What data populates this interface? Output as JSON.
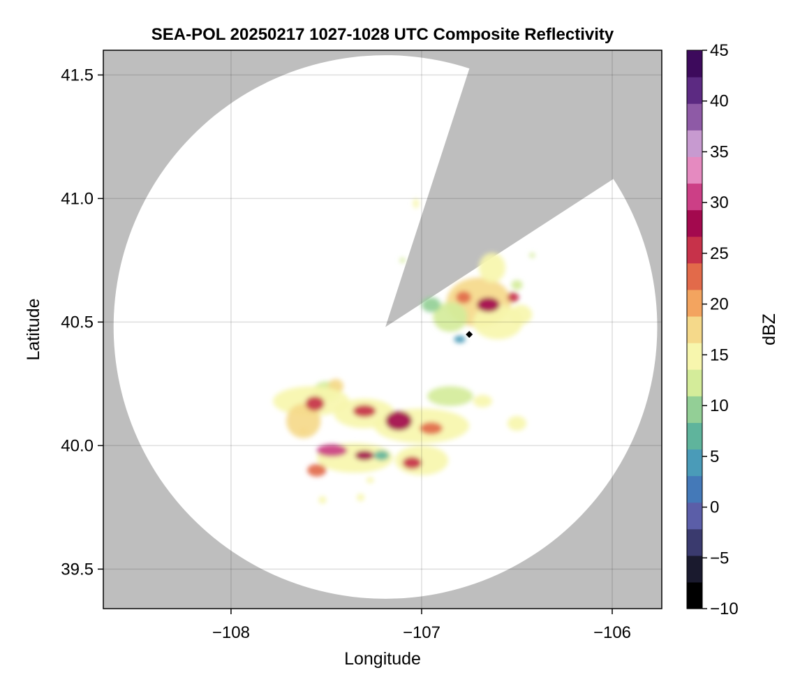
{
  "chart_data": {
    "type": "heatmap",
    "title": "SEA-POL 20250217 1027-1028 UTC Composite Reflectivity",
    "xlabel": "Longitude",
    "ylabel": "Latitude",
    "xlim": [
      -108.67,
      -105.74
    ],
    "ylim": [
      39.34,
      41.6
    ],
    "x_ticks": [
      -108,
      -107,
      -106
    ],
    "x_tick_labels": [
      "−108",
      "−107",
      "−106"
    ],
    "y_ticks": [
      39.5,
      40.0,
      40.5,
      41.0,
      41.5
    ],
    "y_tick_labels": [
      "39.5",
      "40.0",
      "40.5",
      "41.0",
      "41.5"
    ],
    "grid": true,
    "background_color": "#bebebe",
    "coverage_color": "#ffffff",
    "radar": {
      "center_lon": -107.19,
      "center_lat": 40.48,
      "range_radius_lat_deg": 1.1,
      "blocked_sector_bearings_deg": [
        18,
        57
      ]
    },
    "site_marker": {
      "lon": -106.75,
      "lat": 40.45
    },
    "colorbar": {
      "label": "dBZ",
      "min": -10,
      "max": 45,
      "ticks": [
        -10,
        -5,
        0,
        5,
        10,
        15,
        20,
        25,
        30,
        35,
        40,
        45
      ],
      "tick_labels": [
        "−10",
        "−5",
        "0",
        "5",
        "10",
        "15",
        "20",
        "25",
        "30",
        "35",
        "40",
        "45"
      ],
      "colors": [
        "#000000",
        "#1a1a2e",
        "#3a3a6e",
        "#5b5ea8",
        "#4479b8",
        "#4a9bb8",
        "#5fb49c",
        "#93cf96",
        "#d4ec9a",
        "#f7f6ad",
        "#f5d98a",
        "#f3a45f",
        "#e26a4a",
        "#c7324a",
        "#a3094e",
        "#cc3f86",
        "#e58ac0",
        "#c79ad0",
        "#8e5aa6",
        "#5c2a82",
        "#3d0a5c"
      ]
    },
    "echo_cells": [
      {
        "lon": -106.7,
        "lat": 40.58,
        "rlon": 0.17,
        "rlat": 0.1,
        "dbz": 18
      },
      {
        "lon": -106.6,
        "lat": 40.5,
        "rlon": 0.13,
        "rlat": 0.07,
        "dbz": 16
      },
      {
        "lon": -106.48,
        "lat": 40.53,
        "rlon": 0.06,
        "rlat": 0.04,
        "dbz": 14
      },
      {
        "lon": -106.85,
        "lat": 40.52,
        "rlon": 0.09,
        "rlat": 0.06,
        "dbz": 12
      },
      {
        "lon": -106.63,
        "lat": 40.72,
        "rlon": 0.07,
        "rlat": 0.06,
        "dbz": 16
      },
      {
        "lon": -106.95,
        "lat": 40.57,
        "rlon": 0.05,
        "rlat": 0.03,
        "dbz": 10
      },
      {
        "lon": -106.65,
        "lat": 40.57,
        "rlon": 0.06,
        "rlat": 0.03,
        "dbz": 27
      },
      {
        "lon": -106.52,
        "lat": 40.6,
        "rlon": 0.03,
        "rlat": 0.02,
        "dbz": 25
      },
      {
        "lon": -106.78,
        "lat": 40.6,
        "rlon": 0.04,
        "rlat": 0.025,
        "dbz": 22
      },
      {
        "lon": -107.5,
        "lat": 40.22,
        "rlon": 0.07,
        "rlat": 0.04,
        "dbz": 12
      },
      {
        "lon": -107.45,
        "lat": 40.24,
        "rlon": 0.04,
        "rlat": 0.03,
        "dbz": 18
      },
      {
        "lon": -107.58,
        "lat": 40.18,
        "rlon": 0.2,
        "rlat": 0.06,
        "dbz": 16
      },
      {
        "lon": -107.62,
        "lat": 40.1,
        "rlon": 0.09,
        "rlat": 0.07,
        "dbz": 17
      },
      {
        "lon": -107.56,
        "lat": 40.17,
        "rlon": 0.05,
        "rlat": 0.03,
        "dbz": 26
      },
      {
        "lon": -107.3,
        "lat": 40.13,
        "rlon": 0.16,
        "rlat": 0.06,
        "dbz": 16
      },
      {
        "lon": -107.3,
        "lat": 40.14,
        "rlon": 0.06,
        "rlat": 0.025,
        "dbz": 25
      },
      {
        "lon": -107.0,
        "lat": 40.08,
        "rlon": 0.25,
        "rlat": 0.07,
        "dbz": 15
      },
      {
        "lon": -107.12,
        "lat": 40.1,
        "rlon": 0.07,
        "rlat": 0.04,
        "dbz": 27
      },
      {
        "lon": -106.95,
        "lat": 40.07,
        "rlon": 0.06,
        "rlat": 0.025,
        "dbz": 23
      },
      {
        "lon": -106.85,
        "lat": 40.2,
        "rlon": 0.12,
        "rlat": 0.04,
        "dbz": 12
      },
      {
        "lon": -106.68,
        "lat": 40.18,
        "rlon": 0.05,
        "rlat": 0.025,
        "dbz": 14
      },
      {
        "lon": -106.5,
        "lat": 40.09,
        "rlon": 0.05,
        "rlat": 0.03,
        "dbz": 16
      },
      {
        "lon": -107.35,
        "lat": 39.95,
        "rlon": 0.2,
        "rlat": 0.06,
        "dbz": 16
      },
      {
        "lon": -107.47,
        "lat": 39.98,
        "rlon": 0.08,
        "rlat": 0.025,
        "dbz": 31
      },
      {
        "lon": -107.3,
        "lat": 39.96,
        "rlon": 0.05,
        "rlat": 0.02,
        "dbz": 27
      },
      {
        "lon": -107.55,
        "lat": 39.9,
        "rlon": 0.05,
        "rlat": 0.025,
        "dbz": 22
      },
      {
        "lon": -107.0,
        "lat": 39.94,
        "rlon": 0.14,
        "rlat": 0.06,
        "dbz": 14
      },
      {
        "lon": -107.05,
        "lat": 39.93,
        "rlon": 0.05,
        "rlat": 0.025,
        "dbz": 25
      },
      {
        "lon": -107.21,
        "lat": 39.96,
        "rlon": 0.04,
        "rlat": 0.02,
        "dbz": 6
      },
      {
        "lon": -107.52,
        "lat": 39.78,
        "rlon": 0.02,
        "rlat": 0.015,
        "dbz": 16
      },
      {
        "lon": -107.32,
        "lat": 39.79,
        "rlon": 0.02,
        "rlat": 0.015,
        "dbz": 16
      },
      {
        "lon": -107.27,
        "lat": 39.86,
        "rlon": 0.02,
        "rlat": 0.012,
        "dbz": 14
      },
      {
        "lon": -107.62,
        "lat": 40.06,
        "rlon": 0.02,
        "rlat": 0.012,
        "dbz": 18
      },
      {
        "lon": -107.1,
        "lat": 40.75,
        "rlon": 0.015,
        "rlat": 0.01,
        "dbz": 12
      },
      {
        "lon": -107.03,
        "lat": 40.98,
        "rlon": 0.015,
        "rlat": 0.02,
        "dbz": 14
      },
      {
        "lon": -106.8,
        "lat": 40.43,
        "rlon": 0.03,
        "rlat": 0.015,
        "dbz": 5
      },
      {
        "lon": -106.5,
        "lat": 40.65,
        "rlon": 0.03,
        "rlat": 0.02,
        "dbz": 12
      },
      {
        "lon": -106.42,
        "lat": 40.77,
        "rlon": 0.015,
        "rlat": 0.01,
        "dbz": 12
      }
    ]
  }
}
